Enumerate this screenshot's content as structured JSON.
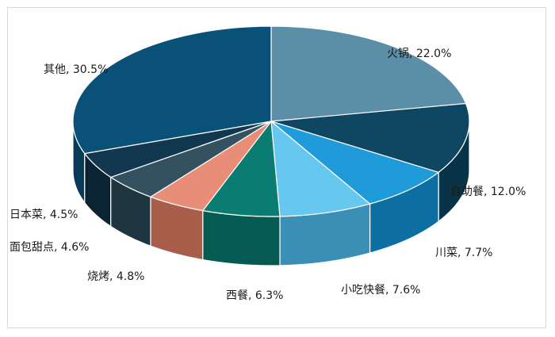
{
  "chart_data": {
    "type": "pie",
    "labels": [
      "火锅",
      "自助餐",
      "川菜",
      "小吃快餐",
      "西餐",
      "烧烤",
      "面包甜点",
      "日本菜",
      "其他"
    ],
    "values": [
      22.0,
      12.0,
      7.7,
      7.6,
      6.3,
      4.8,
      4.6,
      4.5,
      30.5
    ],
    "display_labels": [
      "火锅, 22.0%",
      "自助餐, 12.0%",
      "川菜, 7.7%",
      "小吃快餐, 7.6%",
      "西餐, 6.3%",
      "烧烤, 4.8%",
      "面包甜点, 4.6%",
      "日本菜, 4.5%",
      "其他, 30.5%"
    ],
    "colors": [
      "#5b8fa8",
      "#0f4763",
      "#1f9bd9",
      "#66c7ef",
      "#0a7c72",
      "#e88e78",
      "#33515e",
      "#11384e",
      "#0a5178"
    ],
    "side_colors": [
      "#3d6f86",
      "#093347",
      "#0d6fa1",
      "#3b8eb6",
      "#055a52",
      "#a85e4b",
      "#1f3540",
      "#0a2434",
      "#063a57"
    ],
    "style": "3d-tilted",
    "legend": "none"
  }
}
